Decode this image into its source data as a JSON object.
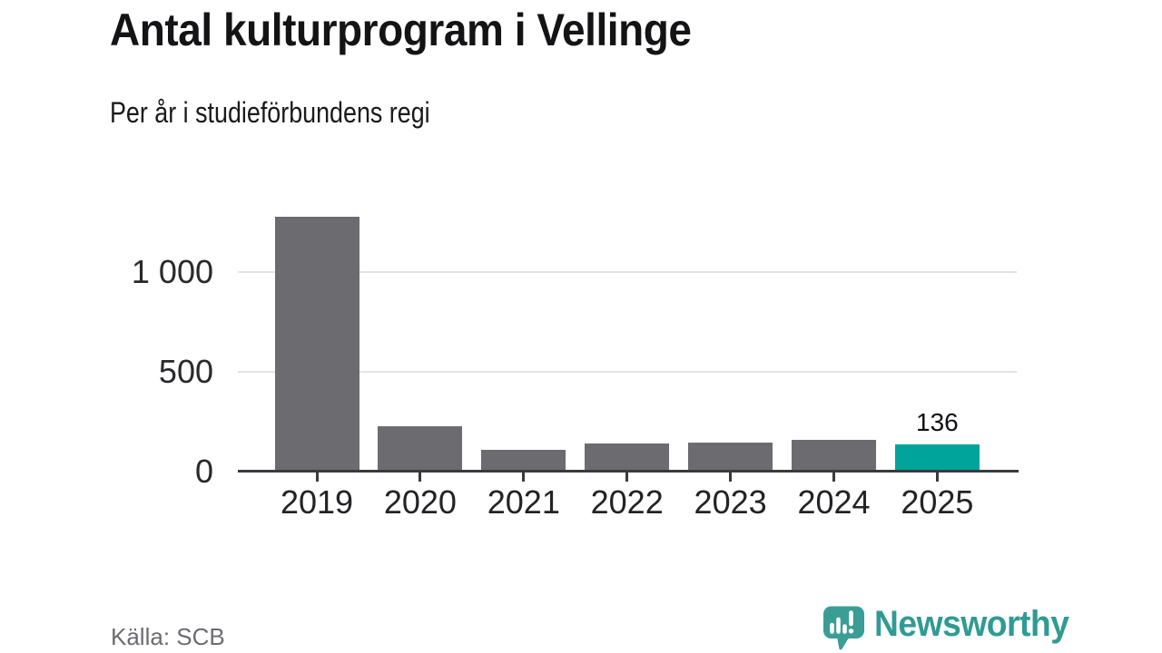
{
  "chart_data": {
    "type": "bar",
    "title": "Antal kulturprogram i Vellinge",
    "subtitle": "Per år i studieförbundens regi",
    "categories": [
      "2019",
      "2020",
      "2021",
      "2022",
      "2023",
      "2024",
      "2025"
    ],
    "values": [
      1275,
      227,
      107,
      142,
      145,
      159,
      136
    ],
    "highlight_index": 6,
    "value_labels": {
      "6": "136"
    },
    "yticks": [
      {
        "label": "0",
        "value": 0
      },
      {
        "label": "500",
        "value": 500
      },
      {
        "label": "1 000",
        "value": 1000
      }
    ],
    "ylim": [
      0,
      1325
    ],
    "xlabel": "",
    "ylabel": "",
    "grid": true,
    "legend": false,
    "bar_color": "#6c6c70",
    "highlight_color": "#00a49b",
    "grid_color": "#e3e3e5",
    "axis_color": "#3a3a3e"
  },
  "footer": {
    "source": "Källa: SCB",
    "brand": "Newsworthy",
    "brand_color": "#2f9b93",
    "logo_bubble_color": "#3a9e96"
  }
}
